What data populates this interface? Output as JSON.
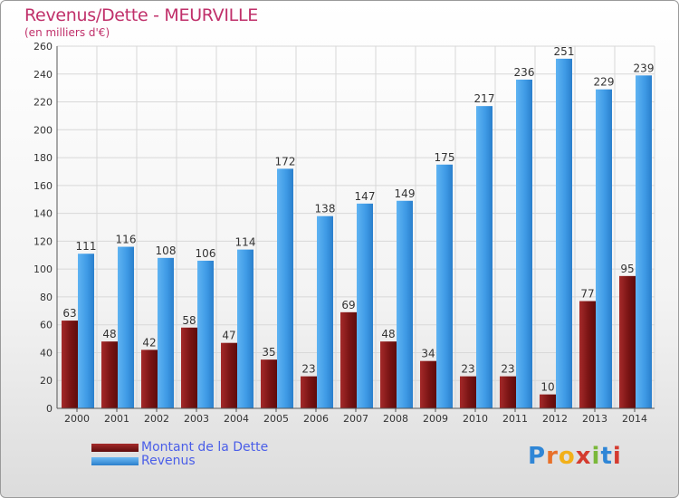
{
  "chart": {
    "title": "Revenus/Dette - MEURVILLE",
    "subtitle": "(en milliers d'€)"
  },
  "legend": {
    "debt_label": "Montant de la Dette",
    "revenue_label": "Revenus"
  },
  "logo": {
    "text": "Proxiti",
    "letters": [
      "P",
      "r",
      "o",
      "x",
      "i",
      "t",
      "i"
    ],
    "colors": [
      "#2f86d6",
      "#e8702a",
      "#f2b019",
      "#d43b2f",
      "#7ab83a",
      "#2f86d6",
      "#d43b2f"
    ]
  },
  "colors": {
    "debt": "#8b1d1d",
    "revenue": "#3f9be6",
    "axis_text": "#333333",
    "grid": "#d8d8d8"
  },
  "chart_data": {
    "type": "bar",
    "title": "Revenus/Dette - MEURVILLE",
    "subtitle": "(en milliers d'€)",
    "categories": [
      "2000",
      "2001",
      "2002",
      "2003",
      "2004",
      "2005",
      "2006",
      "2007",
      "2008",
      "2009",
      "2010",
      "2011",
      "2012",
      "2013",
      "2014"
    ],
    "series": [
      {
        "name": "Montant de la Dette",
        "values": [
          63,
          48,
          42,
          58,
          47,
          35,
          23,
          69,
          48,
          34,
          23,
          23,
          10,
          77,
          95
        ]
      },
      {
        "name": "Revenus",
        "values": [
          111,
          116,
          108,
          106,
          114,
          172,
          138,
          147,
          149,
          175,
          217,
          236,
          251,
          229,
          239
        ]
      }
    ],
    "ylim": [
      0,
      260
    ],
    "yticks": [
      0,
      20,
      40,
      60,
      80,
      100,
      120,
      140,
      160,
      180,
      200,
      220,
      240,
      260
    ],
    "grid": true,
    "legend_position": "bottom-left"
  }
}
